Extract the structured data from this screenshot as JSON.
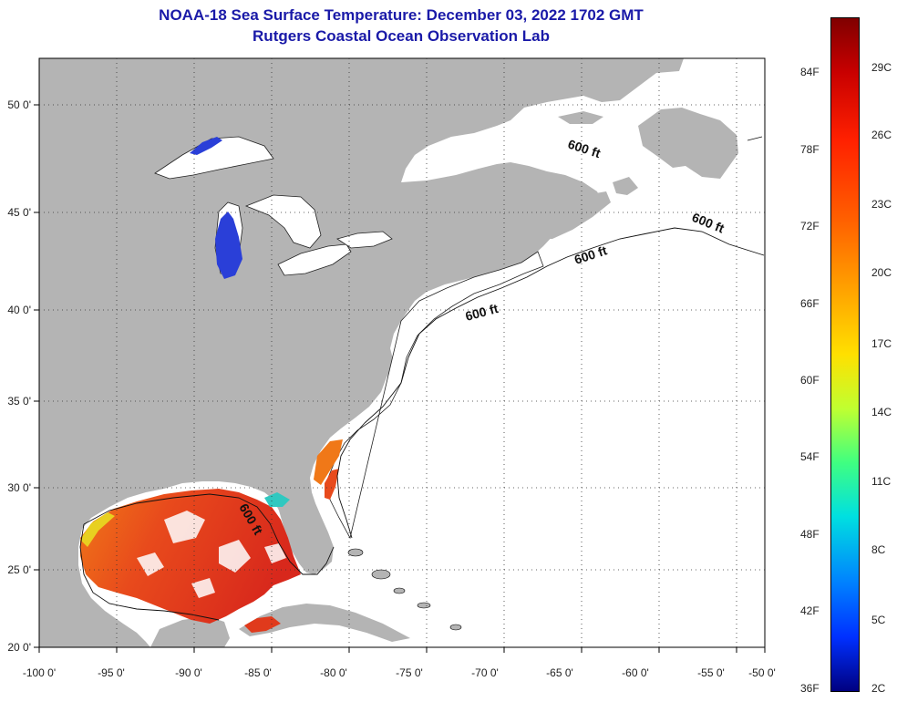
{
  "header": {
    "title": "NOAA-18 Sea Surface Temperature:  December 03, 2022 1702 GMT",
    "subtitle": "Rutgers Coastal Ocean Observation Lab"
  },
  "map": {
    "lon_ticks": [
      "-100 0'",
      "-95 0'",
      "-90 0'",
      "-85 0'",
      "-80 0'",
      "-75 0'",
      "-70 0'",
      "-65 0'",
      "-60 0'",
      "-55 0'",
      "-50 0'"
    ],
    "lat_ticks": [
      "50 0'",
      "45 0'",
      "40 0'",
      "35 0'",
      "30 0'",
      "25 0'",
      "20 0'"
    ],
    "contour_labels": [
      "600 ft",
      "600 ft",
      "600 ft",
      "600 ft",
      "600 ft"
    ],
    "colors": {
      "land": "#b4b4b4",
      "ocean": "#ffffff",
      "title": "#1a1aa8"
    }
  },
  "colorbar": {
    "fahrenheit": [
      "84F",
      "78F",
      "72F",
      "66F",
      "60F",
      "54F",
      "48F",
      "42F",
      "36F"
    ],
    "celsius": [
      "29C",
      "26C",
      "23C",
      "20C",
      "17C",
      "14C",
      "11C",
      "8C",
      "5C",
      "2C"
    ]
  }
}
